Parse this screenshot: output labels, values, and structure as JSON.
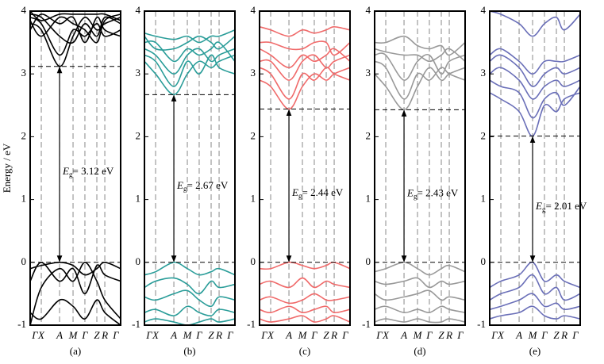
{
  "chart_data": [
    {
      "type": "band",
      "panel": "(a)",
      "ylabel": "Energy / eV",
      "color": "#000000",
      "categories": [
        "Γ",
        "X",
        "A",
        "M",
        "Γ",
        "Z",
        "R",
        "Γ"
      ],
      "ylim": [
        -1,
        4
      ],
      "yticks": [
        -1,
        0,
        1,
        2,
        3,
        4
      ],
      "gap": 3.12,
      "gap_symbol": "E",
      "gap_subscript": "g",
      "gap_label": "= 3.12 eV",
      "bands": [
        [
          3.8,
          3.7,
          3.12,
          3.6,
          3.9,
          3.7,
          3.8,
          3.9
        ],
        [
          3.9,
          3.8,
          3.3,
          3.7,
          3.6,
          3.8,
          3.6,
          3.7
        ],
        [
          3.95,
          3.9,
          3.6,
          3.5,
          3.8,
          3.6,
          3.9,
          3.8
        ],
        [
          3.7,
          3.95,
          3.8,
          3.9,
          3.5,
          3.9,
          3.7,
          3.6
        ],
        [
          3.85,
          3.6,
          3.9,
          3.8,
          3.7,
          3.5,
          3.85,
          3.95
        ],
        [
          4.0,
          3.85,
          3.95,
          3.95,
          3.95,
          3.95,
          3.95,
          3.85
        ],
        [
          -0.1,
          -0.05,
          0,
          -0.05,
          -0.2,
          -0.1,
          0,
          -0.1
        ],
        [
          -0.3,
          0,
          -0.3,
          -0.1,
          -0.5,
          -0.05,
          -0.2,
          -0.3
        ],
        [
          -1,
          -0.4,
          -0.1,
          -0.3,
          0,
          -0.3,
          -0.6,
          -0.9
        ],
        [
          -0.8,
          -0.9,
          -0.6,
          -0.7,
          -0.9,
          -0.6,
          -0.8,
          -1
        ]
      ]
    },
    {
      "type": "band",
      "panel": "(b)",
      "color": "#2a9d99",
      "categories": [
        "Γ",
        "X",
        "A",
        "M",
        "Γ",
        "Z",
        "R",
        "Γ"
      ],
      "ylim": [
        -1,
        4
      ],
      "yticks": [
        -1,
        0,
        1,
        2,
        3,
        4
      ],
      "gap": 2.67,
      "gap_symbol": "E",
      "gap_subscript": "g",
      "gap_label": "= 2.67 eV",
      "bands": [
        [
          3.2,
          3.0,
          2.67,
          3.0,
          3.2,
          3.1,
          3.2,
          3.3
        ],
        [
          3.3,
          3.2,
          2.8,
          3.2,
          3.0,
          3.3,
          3.1,
          3.0
        ],
        [
          3.4,
          3.3,
          3.0,
          3.3,
          3.4,
          3.2,
          3.3,
          3.4
        ],
        [
          3.5,
          3.5,
          3.2,
          3.4,
          3.3,
          3.4,
          3.5,
          3.2
        ],
        [
          3.6,
          3.4,
          3.4,
          3.5,
          3.6,
          3.5,
          3.4,
          3.6
        ],
        [
          3.65,
          3.6,
          3.55,
          3.6,
          3.5,
          3.6,
          3.6,
          3.7
        ],
        [
          -0.2,
          -0.15,
          0,
          -0.1,
          -0.2,
          -0.15,
          -0.1,
          -0.2
        ],
        [
          -0.4,
          -0.3,
          -0.25,
          -0.35,
          -0.5,
          -0.3,
          -0.4,
          -0.35
        ],
        [
          -0.55,
          -0.6,
          -0.5,
          -0.45,
          -0.6,
          -0.7,
          -0.55,
          -0.6
        ],
        [
          -0.8,
          -0.75,
          -0.85,
          -0.7,
          -0.8,
          -0.85,
          -0.75,
          -0.8
        ],
        [
          -0.95,
          -0.9,
          -0.95,
          -1,
          -0.95,
          -0.9,
          -0.95,
          -0.9
        ]
      ]
    },
    {
      "type": "band",
      "panel": "(c)",
      "color": "#f06a6a",
      "categories": [
        "Γ",
        "X",
        "A",
        "M",
        "Γ",
        "Z",
        "R",
        "Γ"
      ],
      "ylim": [
        -1,
        4
      ],
      "yticks": [
        -1,
        0,
        1,
        2,
        3,
        4
      ],
      "gap": 2.44,
      "gap_symbol": "E",
      "gap_subscript": "g",
      "gap_label": "= 2.44 eV",
      "bands": [
        [
          2.9,
          2.8,
          2.44,
          2.8,
          3.0,
          2.9,
          3.0,
          3.1
        ],
        [
          3.1,
          3.0,
          2.6,
          3.0,
          2.9,
          3.1,
          3.0,
          2.9
        ],
        [
          3.2,
          3.2,
          2.9,
          3.2,
          3.3,
          3.1,
          3.2,
          3.3
        ],
        [
          3.4,
          3.3,
          3.1,
          3.3,
          3.2,
          3.3,
          3.4,
          3.2
        ],
        [
          3.5,
          3.5,
          3.4,
          3.4,
          3.5,
          3.5,
          3.3,
          3.5
        ],
        [
          3.75,
          3.7,
          3.6,
          3.7,
          3.65,
          3.7,
          3.75,
          3.7
        ],
        [
          -0.1,
          -0.1,
          0,
          -0.05,
          -0.1,
          -0.05,
          0,
          -0.1
        ],
        [
          -0.35,
          -0.3,
          -0.4,
          -0.25,
          -0.4,
          -0.3,
          -0.35,
          -0.4
        ],
        [
          -0.6,
          -0.55,
          -0.65,
          -0.6,
          -0.5,
          -0.6,
          -0.6,
          -0.55
        ],
        [
          -0.75,
          -0.8,
          -0.7,
          -0.8,
          -0.75,
          -0.7,
          -0.8,
          -0.75
        ],
        [
          -0.9,
          -0.95,
          -0.9,
          -0.85,
          -0.95,
          -0.9,
          -0.85,
          -0.95
        ]
      ]
    },
    {
      "type": "band",
      "panel": "(d)",
      "color": "#999999",
      "categories": [
        "Γ",
        "X",
        "A",
        "M",
        "Γ",
        "Z",
        "R",
        "Γ"
      ],
      "ylim": [
        -1,
        4
      ],
      "yticks": [
        -1,
        0,
        1,
        2,
        3,
        4
      ],
      "gap": 2.43,
      "gap_symbol": "E",
      "gap_subscript": "g",
      "gap_label": "= 2.43 eV",
      "bands": [
        [
          3.0,
          2.8,
          2.43,
          2.8,
          3.1,
          2.9,
          3.0,
          3.1
        ],
        [
          3.2,
          3.1,
          2.6,
          3.0,
          2.9,
          3.1,
          3.0,
          2.9
        ],
        [
          3.3,
          3.3,
          2.9,
          3.2,
          3.3,
          3.0,
          3.2,
          3.3
        ],
        [
          3.4,
          3.35,
          3.3,
          3.3,
          3.2,
          3.3,
          3.4,
          3.2
        ],
        [
          3.5,
          3.5,
          3.6,
          3.45,
          3.4,
          3.45,
          3.3,
          3.5
        ],
        [
          -0.15,
          -0.1,
          0,
          -0.1,
          -0.2,
          -0.1,
          -0.05,
          -0.15
        ],
        [
          -0.3,
          -0.35,
          -0.3,
          -0.25,
          -0.4,
          -0.3,
          -0.35,
          -0.3
        ],
        [
          -0.5,
          -0.6,
          -0.55,
          -0.5,
          -0.45,
          -0.6,
          -0.55,
          -0.6
        ],
        [
          -0.75,
          -0.7,
          -0.8,
          -0.75,
          -0.8,
          -0.7,
          -0.75,
          -0.8
        ],
        [
          -0.95,
          -0.9,
          -0.95,
          -0.9,
          -0.95,
          -0.95,
          -0.9,
          -0.95
        ]
      ]
    },
    {
      "type": "band",
      "panel": "(e)",
      "color": "#6a6fb8",
      "categories": [
        "Γ",
        "X",
        "A",
        "M",
        "Γ",
        "Z",
        "R",
        "Γ"
      ],
      "ylim": [
        -1,
        4
      ],
      "yticks": [
        -1,
        0,
        1,
        2,
        3,
        4
      ],
      "gap": 2.01,
      "gap_symbol": "E",
      "gap_subscript": "g",
      "gap_label": "= 2.01 eV",
      "bands": [
        [
          2.7,
          2.6,
          2.4,
          2.01,
          2.5,
          2.4,
          2.6,
          2.7
        ],
        [
          2.9,
          2.8,
          2.7,
          2.3,
          2.6,
          2.7,
          2.5,
          2.8
        ],
        [
          3.0,
          3.1,
          2.9,
          2.6,
          2.8,
          2.9,
          2.8,
          2.9
        ],
        [
          3.2,
          3.3,
          3.1,
          2.8,
          3.0,
          3.1,
          3.0,
          3.1
        ],
        [
          3.3,
          3.4,
          3.2,
          3.0,
          3.2,
          3.2,
          3.2,
          3.3
        ],
        [
          4.0,
          3.95,
          3.8,
          3.6,
          3.8,
          3.9,
          3.7,
          3.95
        ],
        [
          -0.4,
          -0.3,
          -0.2,
          0,
          -0.3,
          -0.2,
          -0.3,
          -0.4
        ],
        [
          -0.6,
          -0.5,
          -0.4,
          -0.2,
          -0.5,
          -0.4,
          -0.6,
          -0.5
        ],
        [
          -0.75,
          -0.7,
          -0.6,
          -0.5,
          -0.7,
          -0.65,
          -0.75,
          -0.7
        ],
        [
          -0.9,
          -0.85,
          -0.8,
          -0.7,
          -0.85,
          -0.9,
          -0.85,
          -0.9
        ]
      ]
    }
  ]
}
